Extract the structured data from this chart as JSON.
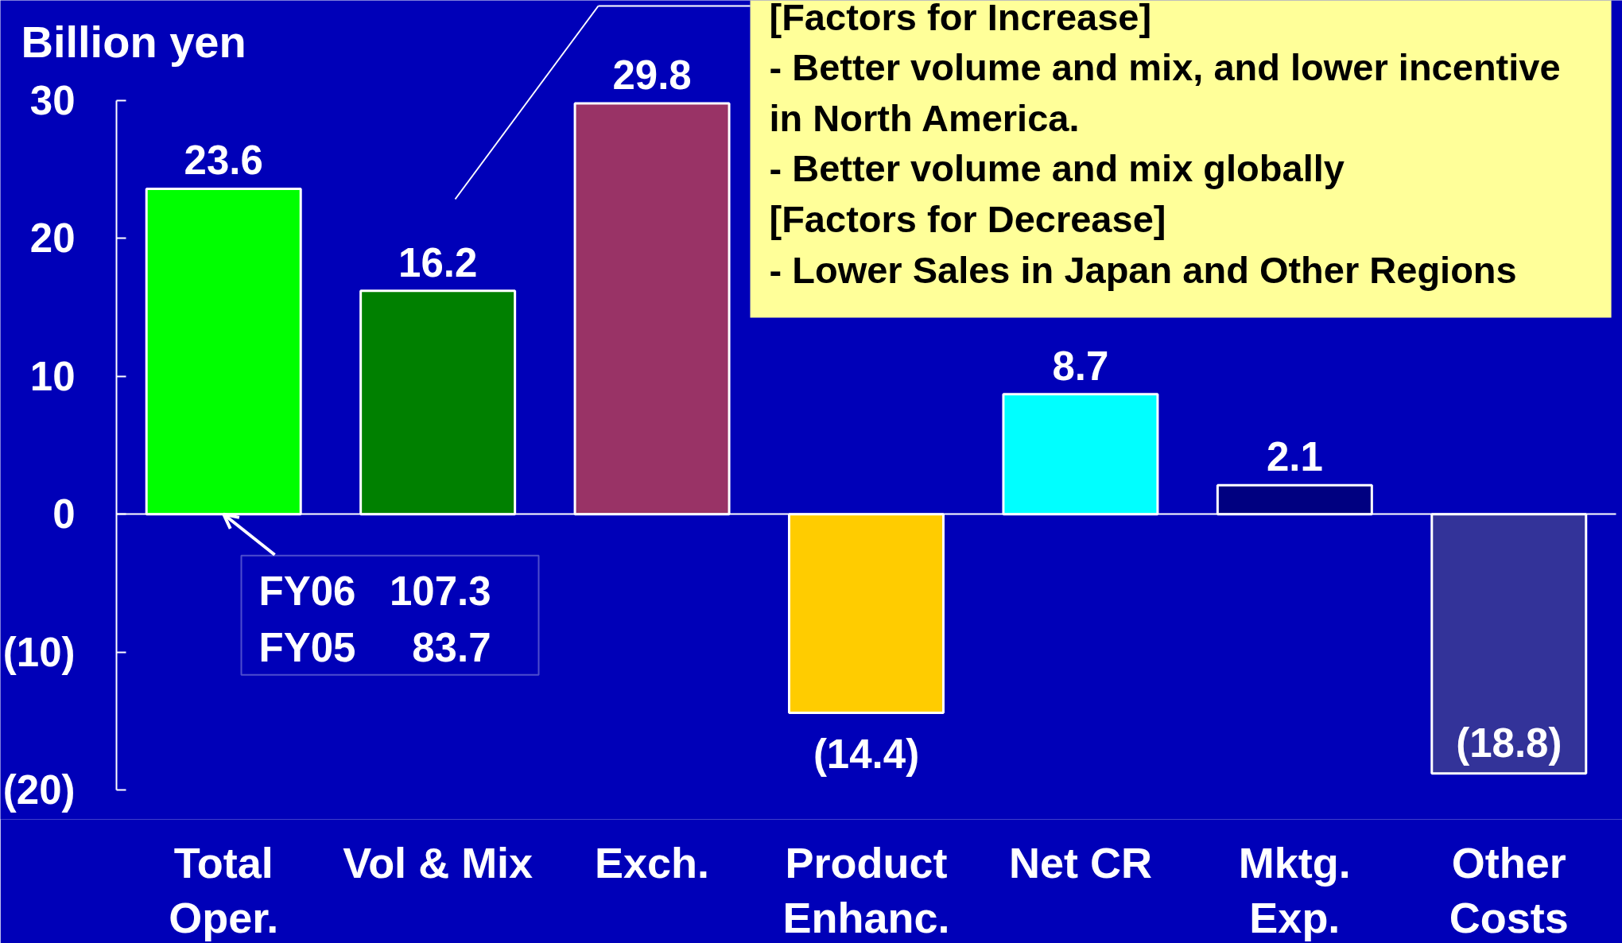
{
  "chart_data": {
    "type": "bar",
    "ylabel": "Billion yen",
    "categories": [
      "Total Oper.",
      "Vol & Mix",
      "Exch.",
      "Product Enhanc.",
      "Net CR",
      "Mktg. Exp.",
      "Other Costs"
    ],
    "values": [
      23.6,
      16.2,
      29.8,
      -14.4,
      8.7,
      2.1,
      -18.8
    ],
    "colors": [
      "#00ff00",
      "#008000",
      "#993366",
      "#ffcc00",
      "#00ffff",
      "#000080",
      "#333399"
    ],
    "value_labels": [
      "23.6",
      "16.2",
      "29.8",
      "(14.4)",
      "8.7",
      "2.1",
      "(18.8)"
    ],
    "ylim": [
      -20,
      30
    ],
    "yticks": [
      {
        "value": -20,
        "label": "(20)"
      },
      {
        "value": -10,
        "label": "(10)"
      },
      0,
      10,
      20,
      30
    ],
    "annotations": [
      "[Factors for Increase]\n- Better volume and mix, and lower incentive in North America.\n- Better volume and mix globally\n[Factors for Decrease]\n- Lower Sales in Japan and Other Regions",
      {
        "text": "FY06 107.3\nFY05 83.7",
        "x": "Total Oper.",
        "y": 0
      }
    ]
  }
}
